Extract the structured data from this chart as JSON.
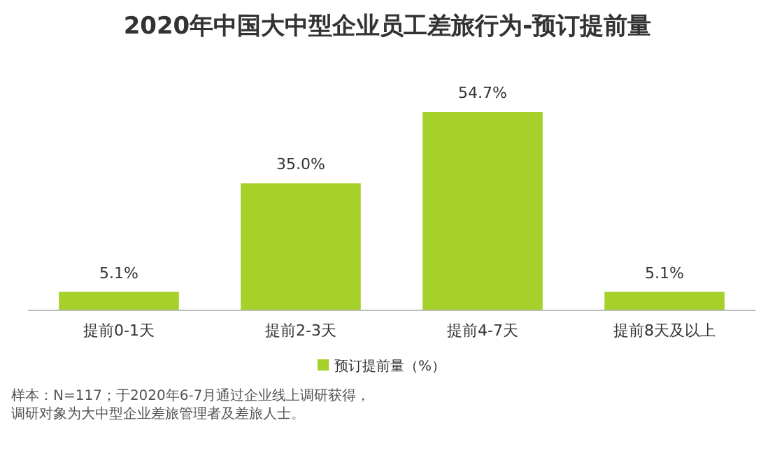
{
  "chart_data": {
    "type": "bar",
    "title": "2020年中国大中型企业员工差旅行为-预订提前量",
    "categories": [
      "提前0-1天",
      "提前2-3天",
      "提前4-7天",
      "提前8天及以上"
    ],
    "series": [
      {
        "name": "预订提前量（%）",
        "color": "#a5d12a",
        "values": [
          5.1,
          35.0,
          54.7,
          5.1
        ],
        "value_labels": [
          "5.1%",
          "35.0%",
          "54.7%",
          "5.1%"
        ]
      }
    ],
    "legend": "bottom",
    "annotations": [
      "样本：N=117；于2020年6-7月通过企业线上调研获得，调研对象为大中型企业差旅管理者及差旅人士。"
    ]
  }
}
